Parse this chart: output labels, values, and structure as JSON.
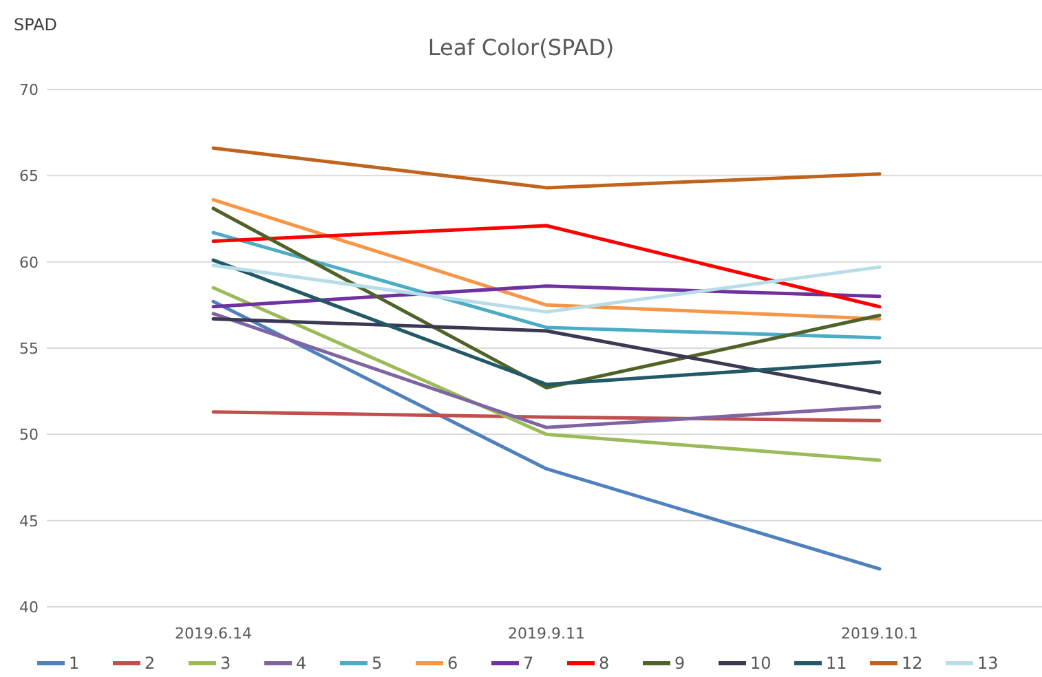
{
  "chart_data": {
    "type": "line",
    "title": "Leaf Color(SPAD)",
    "ylabel": "SPAD",
    "categories": [
      "2019.6.14",
      "2019.9.11",
      "2019.10.1"
    ],
    "ylim": [
      40,
      70
    ],
    "yticks": [
      40,
      45,
      50,
      55,
      60,
      65,
      70
    ],
    "grid": "y",
    "legend": "bottom",
    "marker": "none",
    "line_style": "solid",
    "series": [
      {
        "name": "1",
        "color": "#4f81bd",
        "values": [
          57.7,
          48.0,
          42.2
        ]
      },
      {
        "name": "2",
        "color": "#c0504d",
        "values": [
          51.3,
          51.0,
          50.8
        ]
      },
      {
        "name": "3",
        "color": "#9bbb59",
        "values": [
          58.5,
          50.0,
          48.5
        ]
      },
      {
        "name": "4",
        "color": "#8064a2",
        "values": [
          57.0,
          50.4,
          51.6
        ]
      },
      {
        "name": "5",
        "color": "#4bacc6",
        "values": [
          61.7,
          56.2,
          55.6
        ]
      },
      {
        "name": "6",
        "color": "#f79646",
        "values": [
          63.6,
          57.5,
          56.7
        ]
      },
      {
        "name": "7",
        "color": "#7030a0",
        "values": [
          57.4,
          58.6,
          58.0
        ]
      },
      {
        "name": "8",
        "color": "#ff0000",
        "values": [
          61.2,
          62.1,
          57.4
        ]
      },
      {
        "name": "9",
        "color": "#4f6228",
        "values": [
          63.1,
          52.7,
          56.9
        ]
      },
      {
        "name": "10",
        "color": "#3b3853",
        "values": [
          56.7,
          56.0,
          52.4
        ]
      },
      {
        "name": "11",
        "color": "#215967",
        "values": [
          60.1,
          52.9,
          54.2
        ]
      },
      {
        "name": "12",
        "color": "#c0631c",
        "values": [
          66.6,
          64.3,
          65.1
        ]
      },
      {
        "name": "13",
        "color": "#b7dee8",
        "values": [
          59.8,
          57.1,
          59.7
        ]
      }
    ]
  }
}
